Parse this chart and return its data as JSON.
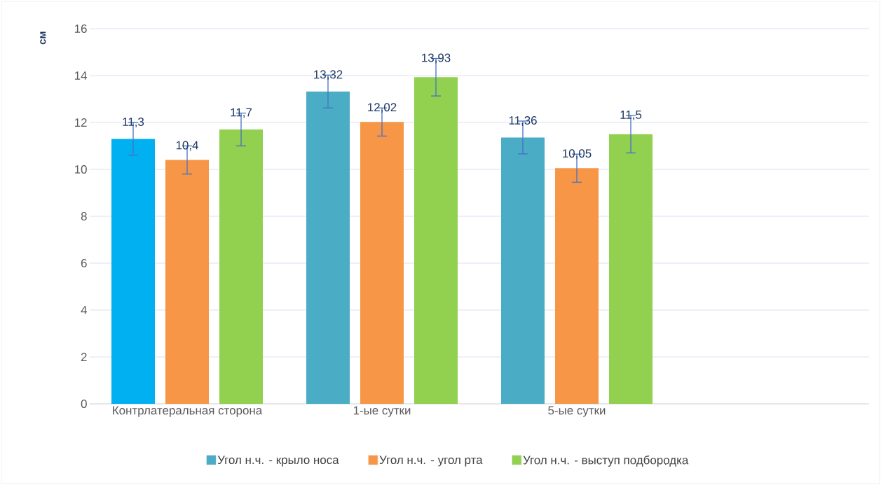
{
  "chart_data": {
    "type": "bar",
    "ylabel": "см",
    "categories": [
      "Контрлатеральная сторона",
      "1-ые сутки",
      "5-ые сутки",
      null
    ],
    "series": [
      {
        "name": "Угол н.ч. - крыло носа",
        "color": "#4bacc6",
        "colors": [
          "#00b0f0",
          "#4bacc6",
          "#4bacc6",
          null
        ],
        "values": [
          11.3,
          13.32,
          11.36,
          null
        ],
        "errors": [
          0.7,
          0.7,
          0.7,
          null
        ],
        "value_labels": [
          "11,3",
          "13,32",
          "11,36",
          null
        ]
      },
      {
        "name": "Угол н.ч. - угол рта",
        "color": "#f79646",
        "colors": [
          "#f79646",
          "#f79646",
          "#f79646",
          null
        ],
        "values": [
          10.4,
          12.02,
          10.05,
          null
        ],
        "errors": [
          0.6,
          0.6,
          0.6,
          null
        ],
        "value_labels": [
          "10,4",
          "12,02",
          "10,05",
          null
        ]
      },
      {
        "name": "Угол н.ч. - выступ подбородка",
        "color": "#92d050",
        "colors": [
          "#92d050",
          "#92d050",
          "#92d050",
          null
        ],
        "values": [
          11.7,
          13.93,
          11.5,
          null
        ],
        "errors": [
          0.7,
          0.8,
          0.8,
          null
        ],
        "value_labels": [
          "11,7",
          "13,93",
          "11,5",
          null
        ]
      }
    ],
    "ylim": [
      0,
      16
    ],
    "yticks": [
      0,
      2,
      4,
      6,
      8,
      10,
      12,
      14,
      16
    ],
    "grid": "y",
    "legend": "bottom"
  }
}
